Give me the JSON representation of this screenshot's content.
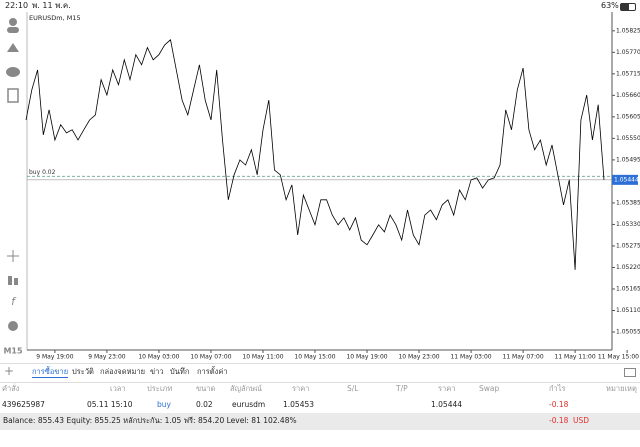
{
  "status_bar": {
    "time": "22:10",
    "date": "พ. 11 พ.ค.",
    "battery": "63%"
  },
  "chart_data": {
    "type": "line",
    "title": "EURUSDm, M15",
    "side_label": "M15",
    "color": "#000000",
    "categories": [
      null,
      null,
      null,
      null,
      null,
      "9 May 19:00",
      null,
      null,
      null,
      null,
      null,
      null,
      null,
      null,
      "9 May 23:00",
      null,
      null,
      null,
      null,
      null,
      null,
      null,
      null,
      "10 May 03:00",
      null,
      null,
      null,
      null,
      null,
      null,
      null,
      null,
      "10 May 07:00",
      null,
      null,
      null,
      null,
      null,
      null,
      null,
      null,
      "10 May 11:00",
      null,
      null,
      null,
      null,
      null,
      null,
      null,
      null,
      "10 May 15:00",
      null,
      null,
      null,
      null,
      null,
      null,
      null,
      null,
      "10 May 19:00",
      null,
      null,
      null,
      null,
      null,
      null,
      null,
      null,
      "10 May 23:00",
      null,
      null,
      null,
      null,
      null,
      null,
      null,
      null,
      "11 May 03:00",
      null,
      null,
      null,
      null,
      null,
      null,
      null,
      null,
      "11 May 07:00",
      null,
      null,
      null,
      null,
      null,
      null,
      null,
      null,
      "11 May 11:00",
      null,
      null,
      null,
      null,
      null,
      null,
      null,
      null,
      "11 May 15:00"
    ],
    "values": [
      1.05597,
      1.05674,
      1.05725,
      1.05559,
      1.05623,
      1.05546,
      1.05585,
      1.05564,
      1.05572,
      1.05546,
      1.05572,
      1.05597,
      1.0561,
      1.057,
      1.05661,
      1.05725,
      1.05687,
      1.05751,
      1.057,
      1.05764,
      1.05738,
      1.05782,
      1.05751,
      1.05764,
      1.05789,
      1.05802,
      1.05725,
      1.05648,
      1.0561,
      1.05674,
      1.05738,
      1.05648,
      1.05597,
      1.05725,
      1.05546,
      1.05393,
      1.05457,
      1.05495,
      1.05482,
      1.05521,
      1.05457,
      1.05572,
      1.05648,
      1.05469,
      1.05457,
      1.05393,
      1.05431,
      1.05303,
      1.05405,
      1.05367,
      1.05329,
      1.05393,
      1.05393,
      1.05354,
      1.05329,
      1.05347,
      1.05316,
      1.05347,
      1.0529,
      1.05278,
      1.05303,
      1.05329,
      1.05311,
      1.05354,
      1.05329,
      1.0529,
      1.05367,
      1.05303,
      1.05278,
      1.05354,
      1.05367,
      1.05342,
      1.0538,
      1.05393,
      1.05354,
      1.05418,
      1.05393,
      1.05444,
      1.05449,
      1.05423,
      1.05444,
      1.05449,
      1.05482,
      1.05623,
      1.05572,
      1.05674,
      1.0573,
      1.05572,
      1.05521,
      1.05546,
      1.05482,
      1.05533,
      1.05457,
      1.0538,
      1.05444,
      1.05214,
      1.05597,
      1.05661,
      1.05546,
      1.05636,
      1.05444,
      null,
      null,
      null,
      null
    ],
    "ylim": [
      1.05009,
      1.05868
    ],
    "yticks": [
      {
        "value": 1.05825,
        "label": "1.05825"
      },
      {
        "value": 1.0577,
        "label": "1.05770"
      },
      {
        "value": 1.05715,
        "label": "1.05715"
      },
      {
        "value": 1.0566,
        "label": "1.05660"
      },
      {
        "value": 1.05605,
        "label": "1.05605"
      },
      {
        "value": 1.0555,
        "label": "1.05550"
      },
      {
        "value": 1.05495,
        "label": "1.05495"
      },
      {
        "value": 1.05385,
        "label": "1.05385"
      },
      {
        "value": 1.0533,
        "label": "1.05330"
      },
      {
        "value": 1.05275,
        "label": "1.05275"
      },
      {
        "value": 1.0522,
        "label": "1.05220"
      },
      {
        "value": 1.05165,
        "label": "1.05165"
      },
      {
        "value": 1.0511,
        "label": "1.05110"
      },
      {
        "value": 1.05055,
        "label": "1.05055"
      }
    ],
    "position_line": {
      "label": "buy 0.02",
      "value": 1.05453
    },
    "last_price": 1.05444
  },
  "tabs": [
    "การซื้อขาย",
    "ประวัติ",
    "กล่องจดหมาย",
    "ข่าว",
    "บันทึก",
    "การตั้งค่า"
  ],
  "table": {
    "headers": [
      "คำสั่ง",
      "เวลา",
      "ประเภท",
      "ขนาด",
      "สัญลักษณ์",
      "ราคา",
      "S/L",
      "T/P",
      "ราคา",
      "Swap",
      "กำไร",
      "หมายเหตุ"
    ],
    "row": {
      "order": "439625987",
      "time": "05.11 15:10",
      "type": "buy",
      "volume": "0.02",
      "symbol": "eurusdm",
      "open_price": "1.05453",
      "current_price": "1.05444",
      "profit": "-0.18"
    }
  },
  "footer": {
    "summary": "Balance: 855.43 Equity: 855.25 หลักประกัน: 1.05 ฟรี: 854.20 Level: 81 102.48%",
    "profit": "-0.18",
    "currency": "USD"
  }
}
